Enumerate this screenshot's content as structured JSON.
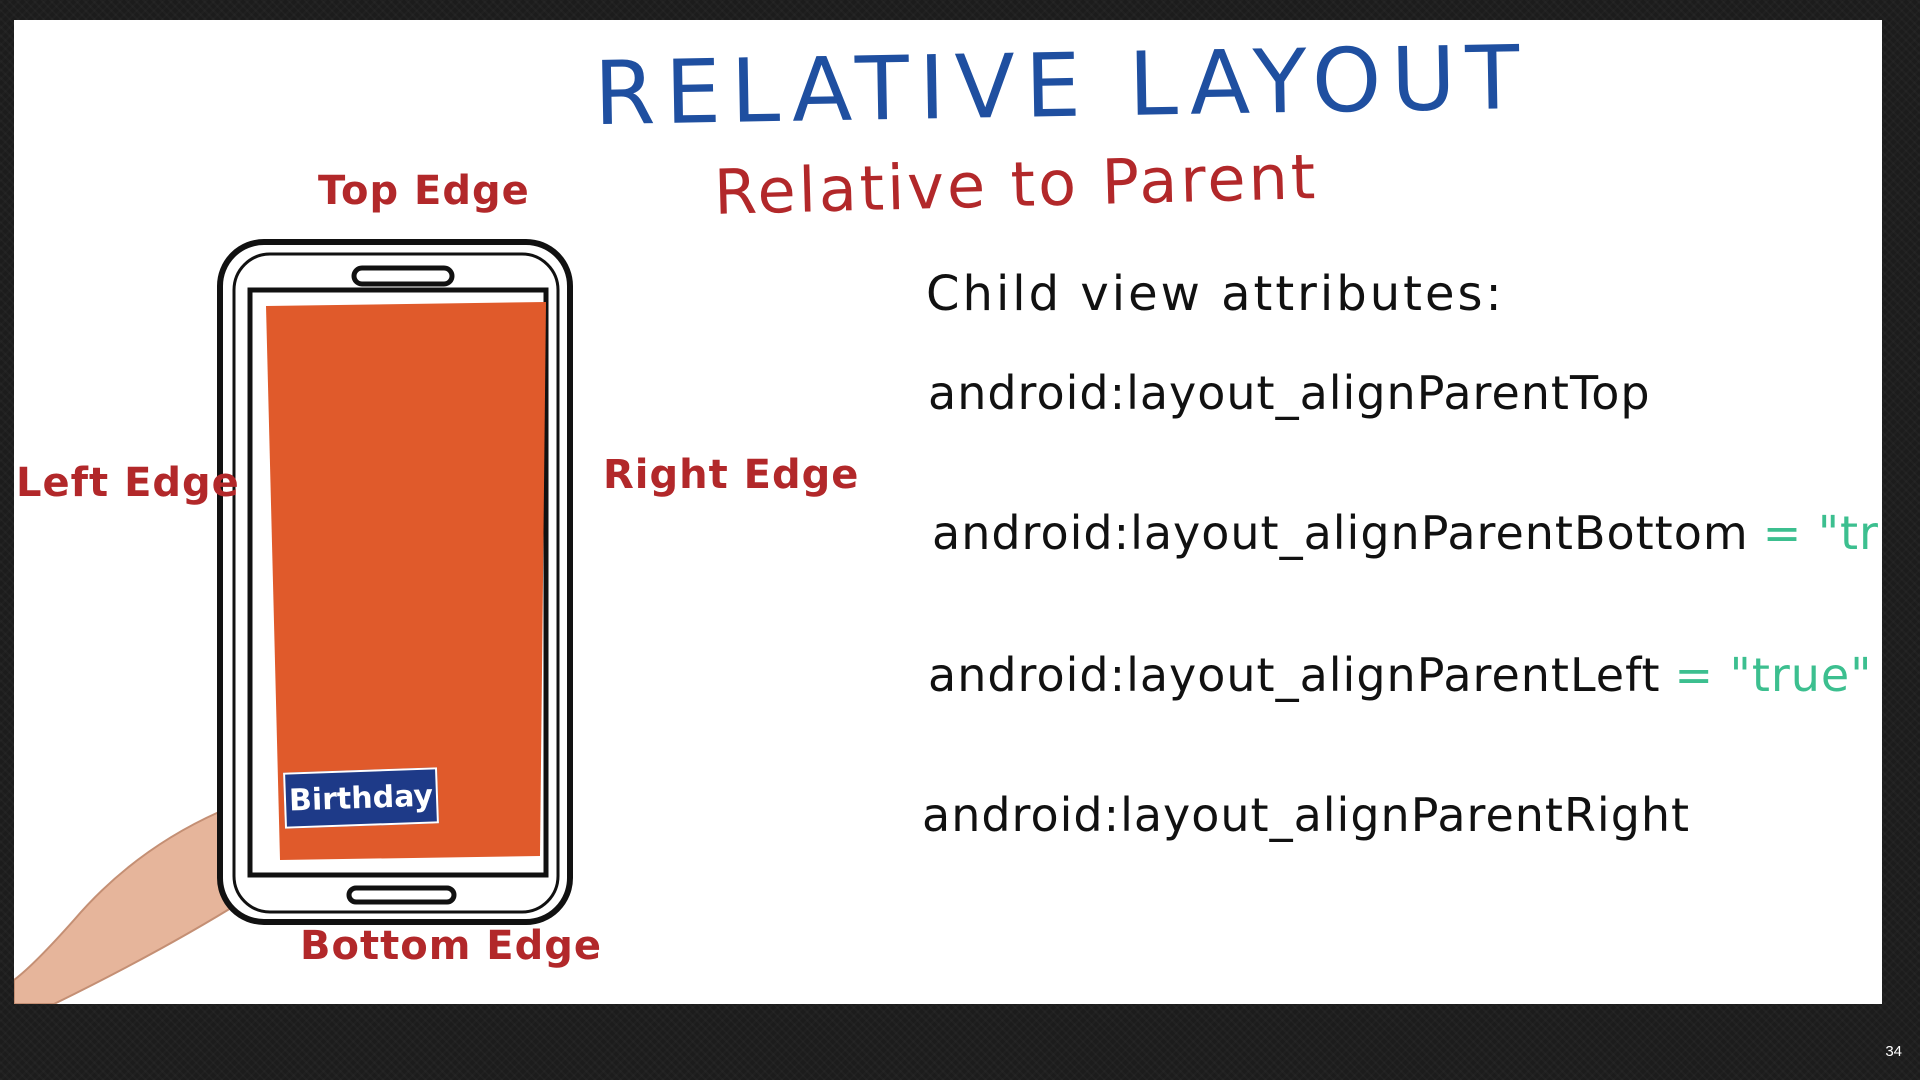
{
  "slide": {
    "title": "RELATIVE LAYOUT",
    "subtitle": "Relative to Parent",
    "edges": {
      "top": "Top Edge",
      "left": "Left Edge",
      "right": "Right Edge",
      "bottom": "Bottom Edge"
    },
    "phone": {
      "screen_color": "#e05a2b",
      "view_label": "Birthday"
    },
    "attributes_heading": "Child view attributes:",
    "attributes": [
      {
        "name": "android:layout_alignParentTop",
        "value": ""
      },
      {
        "name": "android:layout_alignParentBottom",
        "value": "= \"true\""
      },
      {
        "name": "android:layout_alignParentLeft",
        "value": "= \"true\""
      },
      {
        "name": "android:layout_alignParentRight",
        "value": ""
      }
    ]
  },
  "page_number": "34",
  "colors": {
    "title": "#1f4fa0",
    "subtitle": "#b2282a",
    "value": "#3cbf8f"
  }
}
